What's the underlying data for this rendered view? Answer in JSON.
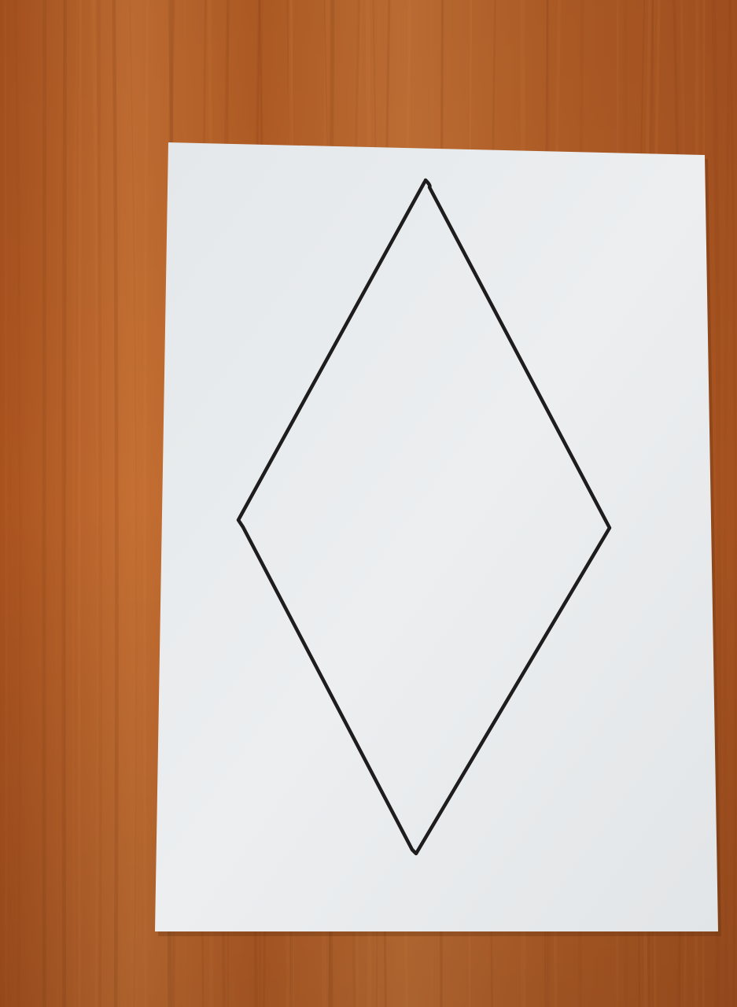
{
  "scene": {
    "subject": "hand-drawn-rhombus-on-paper",
    "colors": {
      "table_wood": "#b8622a",
      "table_wood_light": "#cf7c3e",
      "table_wood_dark": "#8f4618",
      "paper": "#e8ebed",
      "paper_shade": "#d9dde0",
      "ink": "#1e1c1c"
    }
  }
}
